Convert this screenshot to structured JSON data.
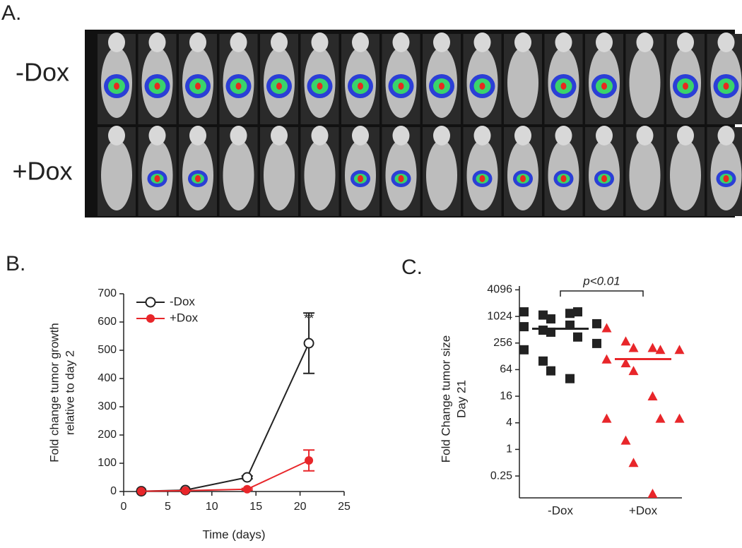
{
  "panel_a": {
    "label": "A.",
    "rows": [
      "-Dox",
      "+Dox"
    ]
  },
  "chart_data": [
    {
      "type": "line",
      "panel_label": "B.",
      "ylabel": [
        "Fold change tumor growth",
        "relative to day 2"
      ],
      "xlabel": "Time (days)",
      "annotation": "**",
      "x": [
        2,
        7,
        14,
        21
      ],
      "series": [
        {
          "name": "-Dox",
          "color": "#222222",
          "marker": "open-circle",
          "values": [
            1,
            5,
            50,
            525
          ],
          "error": [
            0,
            2,
            5,
            107
          ]
        },
        {
          "name": "+Dox",
          "color": "#e8262a",
          "marker": "circle",
          "values": [
            1,
            3,
            8,
            110
          ],
          "error": [
            0,
            1,
            3,
            37
          ]
        }
      ],
      "xlim": [
        0,
        25
      ],
      "xticks": [
        0,
        5,
        10,
        15,
        20,
        25
      ],
      "ylim": [
        0,
        700
      ],
      "yticks": [
        0,
        100,
        200,
        300,
        400,
        500,
        600,
        700
      ],
      "legend": "top-left"
    },
    {
      "type": "scatter",
      "panel_label": "C.",
      "ylabel": [
        "Fold Change tumor size",
        "Day 21"
      ],
      "annotation": "p<0.01",
      "categories": [
        "-Dox",
        "+Dox"
      ],
      "yscale": "log2",
      "ylim": [
        0.08,
        5000
      ],
      "yticks": [
        0.25,
        1,
        4,
        16,
        64,
        256,
        1024,
        4096
      ],
      "series": [
        {
          "color": "#222222",
          "marker": "square",
          "center_line": 540,
          "values": [
            1300,
            1100,
            900,
            1200,
            1300,
            700,
            600,
            500,
            450,
            650,
            350,
            250,
            180,
            100,
            60,
            40
          ]
        },
        {
          "color": "#e8262a",
          "marker": "triangle",
          "center_line": 111,
          "values": [
            560,
            280,
            200,
            200,
            180,
            180,
            110,
            90,
            60,
            16,
            5,
            5,
            5,
            1.6,
            0.5,
            0.1
          ]
        }
      ]
    }
  ]
}
